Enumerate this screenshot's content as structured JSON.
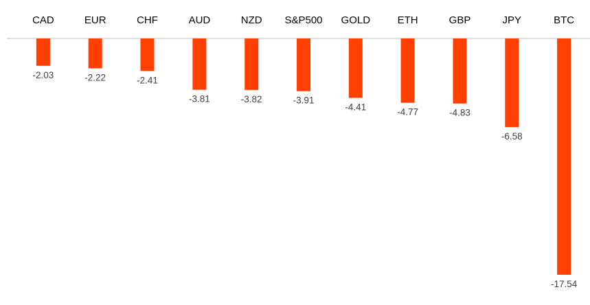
{
  "chart_data": {
    "type": "bar",
    "orientation": "vertical",
    "categories": [
      "CAD",
      "EUR",
      "CHF",
      "AUD",
      "NZD",
      "S&P500",
      "GOLD",
      "ETH",
      "GBP",
      "JPY",
      "BTC"
    ],
    "values": [
      -2.03,
      -2.22,
      -2.41,
      -3.81,
      -3.82,
      -3.91,
      -4.41,
      -4.77,
      -4.83,
      -6.58,
      -17.54
    ],
    "data_labels": [
      "-2.03",
      "-2.22",
      "-2.41",
      "-3.81",
      "-3.82",
      "-3.91",
      "-4.41",
      "-4.77",
      "-4.83",
      "-6.58",
      "-17.54"
    ],
    "title": "",
    "xlabel": "",
    "ylabel": "",
    "ylim": [
      -17.54,
      0
    ],
    "category_labels_position": "top",
    "grid": false,
    "legend": "none",
    "bar_color": "#ff4000",
    "baseline_color": "#bfbfbf"
  }
}
